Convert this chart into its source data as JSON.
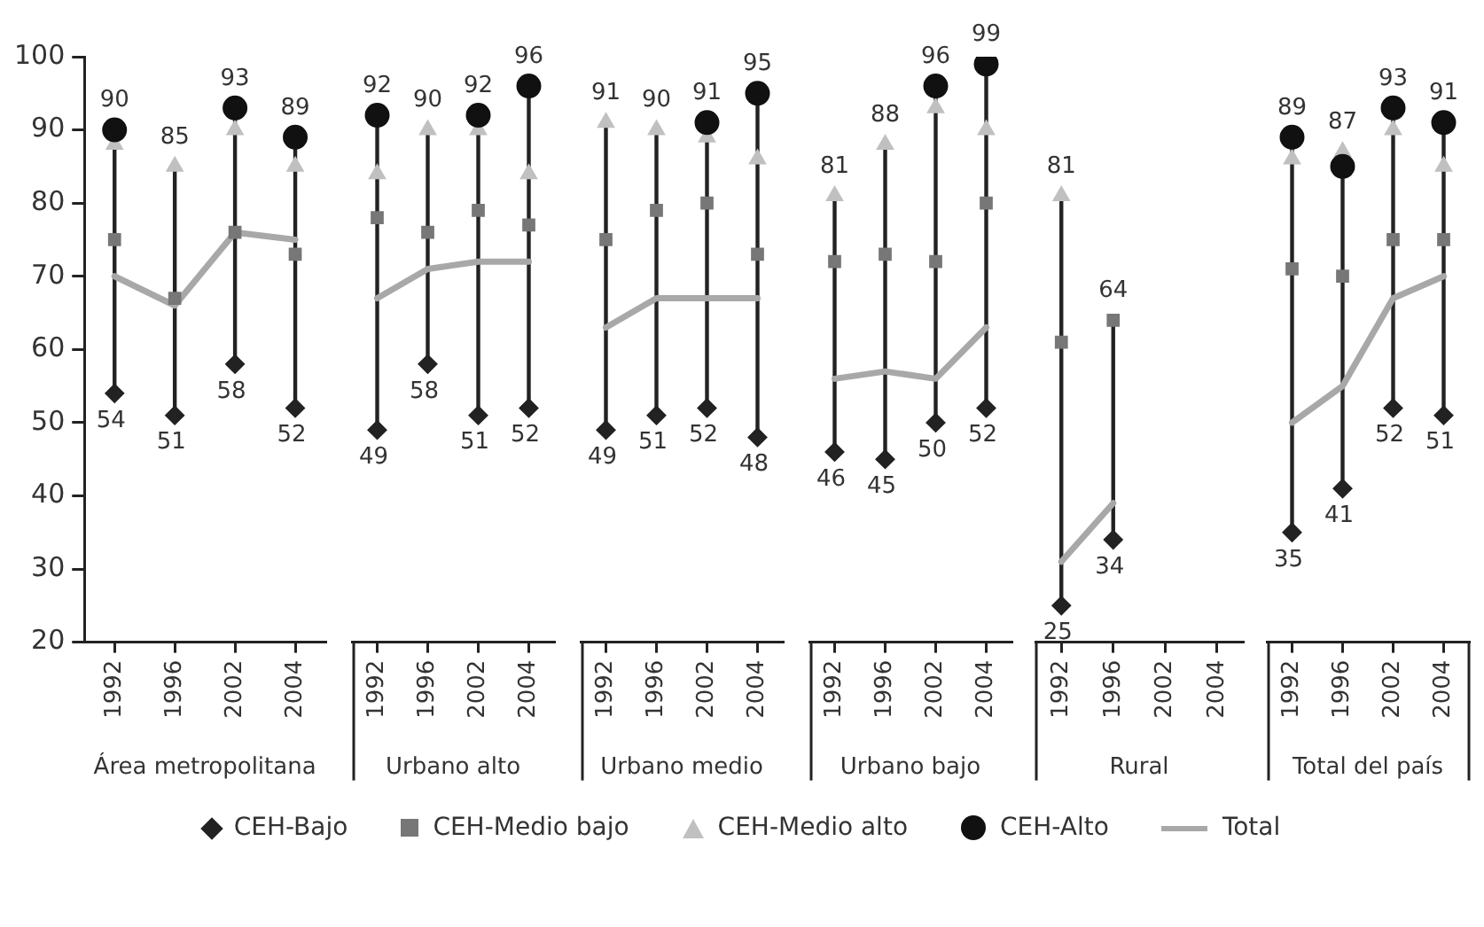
{
  "chart_data": [
    {
      "type": "scatter",
      "categories": [
        "1992",
        "1996",
        "2002",
        "2004"
      ],
      "xlabel": "Área metropolitana",
      "ylim": [
        20,
        100
      ],
      "yticks": [
        20,
        30,
        40,
        50,
        60,
        70,
        80,
        90,
        100
      ],
      "legend": "bottom",
      "series": [
        {
          "name": "CEH-Bajo",
          "type": "scatter",
          "marker": "diamond",
          "color": "#222222",
          "values": [
            54,
            51,
            58,
            52
          ],
          "value_labels": [
            "54",
            "51",
            "58",
            "52"
          ]
        },
        {
          "name": "CEH-Medio bajo",
          "type": "scatter",
          "marker": "square",
          "color": "#777777",
          "values": [
            75,
            67,
            76,
            73
          ]
        },
        {
          "name": "CEH-Medio alto",
          "type": "scatter",
          "marker": "triangle",
          "color": "#c0c0c0",
          "values": [
            88,
            85,
            90,
            85
          ],
          "value_labels": [
            null,
            "85",
            null,
            null
          ]
        },
        {
          "name": "CEH-Alto",
          "type": "scatter",
          "marker": "circle",
          "color": "#111111",
          "values": [
            90,
            null,
            93,
            89
          ],
          "value_labels": [
            "90",
            null,
            "93",
            "89"
          ]
        },
        {
          "name": "Total",
          "type": "line",
          "marker": "none",
          "line_style": "solid",
          "color": "#a8a8a8",
          "values": [
            70,
            66,
            76,
            75
          ]
        }
      ]
    },
    {
      "type": "scatter",
      "categories": [
        "1992",
        "1996",
        "2002",
        "2004"
      ],
      "xlabel": "Urbano alto",
      "ylim": [
        20,
        100
      ],
      "yticks": [
        20,
        30,
        40,
        50,
        60,
        70,
        80,
        90,
        100
      ],
      "tick_labels": "x",
      "series": [
        {
          "type": "scatter",
          "marker": "diamond",
          "color": "#222222",
          "values": [
            49,
            58,
            51,
            52
          ],
          "value_labels": [
            "49",
            "58",
            "51",
            "52"
          ]
        },
        {
          "type": "scatter",
          "marker": "square",
          "color": "#777777",
          "values": [
            78,
            76,
            79,
            77
          ]
        },
        {
          "type": "scatter",
          "marker": "triangle",
          "color": "#c0c0c0",
          "values": [
            84,
            90,
            90,
            84
          ],
          "value_labels": [
            null,
            "90",
            null,
            null
          ]
        },
        {
          "type": "scatter",
          "marker": "circle",
          "color": "#111111",
          "values": [
            92,
            null,
            92,
            96
          ],
          "value_labels": [
            "92",
            null,
            "92",
            "96"
          ]
        },
        {
          "type": "line",
          "marker": "none",
          "line_style": "solid",
          "color": "#a8a8a8",
          "values": [
            67,
            71,
            72,
            72
          ]
        }
      ]
    },
    {
      "type": "scatter",
      "categories": [
        "1992",
        "1996",
        "2002",
        "2004"
      ],
      "xlabel": "Urbano medio",
      "ylim": [
        20,
        100
      ],
      "yticks": [
        20,
        30,
        40,
        50,
        60,
        70,
        80,
        90,
        100
      ],
      "tick_labels": "x",
      "series": [
        {
          "type": "scatter",
          "marker": "diamond",
          "color": "#222222",
          "values": [
            49,
            51,
            52,
            48
          ],
          "value_labels": [
            "49",
            "51",
            "52",
            "48"
          ]
        },
        {
          "type": "scatter",
          "marker": "square",
          "color": "#777777",
          "values": [
            75,
            79,
            80,
            73
          ]
        },
        {
          "type": "scatter",
          "marker": "triangle",
          "color": "#c0c0c0",
          "values": [
            91,
            90,
            89,
            86
          ],
          "value_labels": [
            "91",
            "90",
            null,
            null
          ]
        },
        {
          "type": "scatter",
          "marker": "circle",
          "color": "#111111",
          "values": [
            null,
            null,
            91,
            95
          ],
          "value_labels": [
            null,
            null,
            "91",
            "95"
          ]
        },
        {
          "type": "line",
          "marker": "none",
          "line_style": "solid",
          "color": "#a8a8a8",
          "values": [
            63,
            67,
            67,
            67
          ]
        }
      ]
    },
    {
      "type": "scatter",
      "categories": [
        "1992",
        "1996",
        "2002",
        "2004"
      ],
      "xlabel": "Urbano bajo",
      "ylim": [
        20,
        100
      ],
      "yticks": [
        20,
        30,
        40,
        50,
        60,
        70,
        80,
        90,
        100
      ],
      "tick_labels": "x",
      "series": [
        {
          "type": "scatter",
          "marker": "diamond",
          "color": "#222222",
          "values": [
            46,
            45,
            50,
            52
          ],
          "value_labels": [
            "46",
            "45",
            "50",
            "52"
          ]
        },
        {
          "type": "scatter",
          "marker": "square",
          "color": "#777777",
          "values": [
            72,
            73,
            72,
            80
          ]
        },
        {
          "type": "scatter",
          "marker": "triangle",
          "color": "#c0c0c0",
          "values": [
            81,
            88,
            93,
            90
          ],
          "value_labels": [
            "81",
            "88",
            null,
            null
          ]
        },
        {
          "type": "scatter",
          "marker": "circle",
          "color": "#111111",
          "values": [
            null,
            null,
            96,
            99
          ],
          "value_labels": [
            null,
            null,
            "96",
            "99"
          ]
        },
        {
          "type": "line",
          "marker": "none",
          "line_style": "solid",
          "color": "#a8a8a8",
          "values": [
            56,
            57,
            56,
            63
          ]
        }
      ]
    },
    {
      "type": "scatter",
      "categories": [
        "1992",
        "1996",
        "2002",
        "2004"
      ],
      "xlabel": "Rural",
      "ylim": [
        20,
        100
      ],
      "yticks": [
        20,
        30,
        40,
        50,
        60,
        70,
        80,
        90,
        100
      ],
      "tick_labels": "x",
      "series": [
        {
          "type": "scatter",
          "marker": "diamond",
          "color": "#222222",
          "values": [
            25,
            34,
            null,
            null
          ],
          "value_labels": [
            "25",
            "34",
            null,
            null
          ]
        },
        {
          "type": "scatter",
          "marker": "square",
          "color": "#777777",
          "values": [
            61,
            64,
            null,
            null
          ],
          "value_labels": [
            null,
            "64",
            null,
            null
          ]
        },
        {
          "type": "scatter",
          "marker": "triangle",
          "color": "#c0c0c0",
          "values": [
            81,
            null,
            null,
            null
          ],
          "value_labels": [
            "81",
            null,
            null,
            null
          ]
        },
        {
          "type": "line",
          "marker": "none",
          "line_style": "solid",
          "color": "#a8a8a8",
          "values": [
            31,
            39,
            null,
            null
          ]
        }
      ]
    },
    {
      "type": "scatter",
      "categories": [
        "1992",
        "1996",
        "2002",
        "2004"
      ],
      "xlabel": "Total del país",
      "ylim": [
        20,
        100
      ],
      "yticks": [
        20,
        30,
        40,
        50,
        60,
        70,
        80,
        90,
        100
      ],
      "tick_labels": "x",
      "series": [
        {
          "type": "scatter",
          "marker": "diamond",
          "color": "#222222",
          "values": [
            35,
            41,
            52,
            51
          ],
          "value_labels": [
            "35",
            "41",
            "52",
            "51"
          ]
        },
        {
          "type": "scatter",
          "marker": "square",
          "color": "#777777",
          "values": [
            71,
            70,
            75,
            75
          ]
        },
        {
          "type": "scatter",
          "marker": "triangle",
          "color": "#c0c0c0",
          "values": [
            86,
            87,
            90,
            85
          ],
          "value_labels": [
            null,
            "87",
            null,
            null
          ]
        },
        {
          "type": "scatter",
          "marker": "circle",
          "color": "#111111",
          "values": [
            89,
            85,
            93,
            91
          ],
          "value_labels": [
            "89",
            null,
            "93",
            "91"
          ]
        },
        {
          "type": "line",
          "marker": "none",
          "line_style": "solid",
          "color": "#a8a8a8",
          "values": [
            50,
            55,
            67,
            70
          ]
        }
      ]
    }
  ]
}
